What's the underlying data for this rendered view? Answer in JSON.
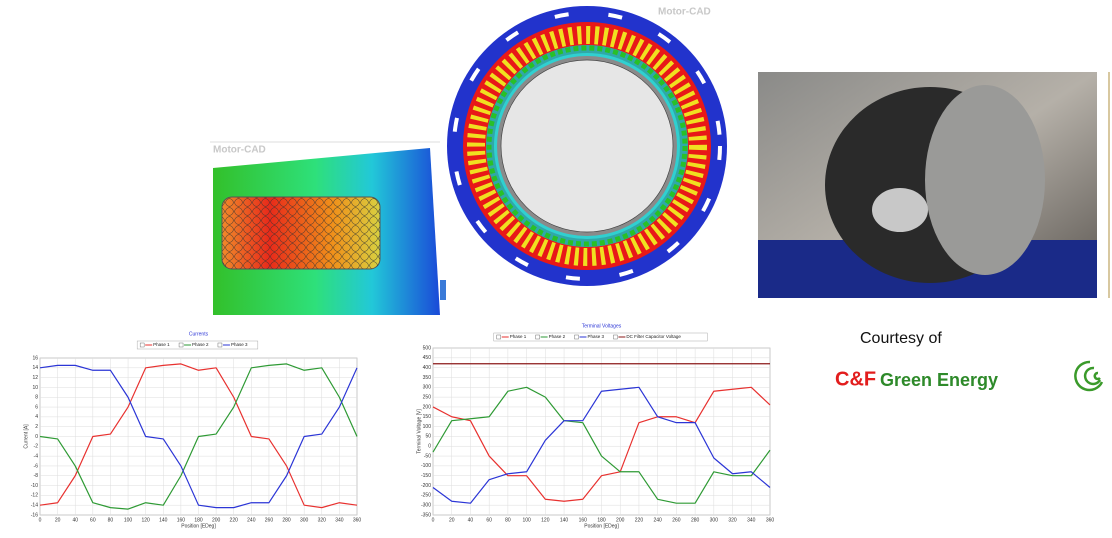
{
  "watermarks": [
    "Motor-CAD",
    "Motor-CAD"
  ],
  "courtesy": "Courtesy of",
  "logo": {
    "cf": "C&F",
    "name": "Green Energy"
  },
  "chart_data": [
    {
      "type": "line",
      "title": "Currents",
      "xlabel": "Position [EDeg]",
      "ylabel": "Current [A]",
      "x": [
        0,
        20,
        40,
        60,
        80,
        100,
        120,
        140,
        160,
        180,
        200,
        220,
        240,
        260,
        280,
        300,
        320,
        340,
        360
      ],
      "xlim": [
        0,
        360
      ],
      "xticks": [
        0,
        20,
        40,
        60,
        80,
        100,
        120,
        140,
        160,
        180,
        200,
        220,
        240,
        260,
        280,
        300,
        320,
        340,
        360
      ],
      "ylim": [
        -16,
        16
      ],
      "yticks": [
        -16,
        -14,
        -12,
        -10,
        -8,
        -6,
        -4,
        -2,
        0,
        2,
        4,
        6,
        8,
        10,
        12,
        14,
        16
      ],
      "grid": true,
      "series": [
        {
          "name": "Phase 1",
          "color": "#e8312f",
          "values": [
            -14,
            -13.5,
            -8,
            0,
            0.5,
            6,
            14,
            14.5,
            14.8,
            13.5,
            14,
            8,
            0,
            -0.5,
            -6,
            -14,
            -14.5,
            -13.5,
            -14
          ]
        },
        {
          "name": "Phase 2",
          "color": "#2e9a34",
          "values": [
            0,
            -0.5,
            -6,
            -13.5,
            -14.5,
            -14.8,
            -13.5,
            -14,
            -8,
            0,
            0.5,
            6,
            14,
            14.5,
            14.8,
            13.5,
            14,
            8,
            0
          ]
        },
        {
          "name": "Phase 3",
          "color": "#2b35d6",
          "values": [
            14,
            14.5,
            14.5,
            13.5,
            13.5,
            8,
            0,
            -0.5,
            -6,
            -14,
            -14.5,
            -14.5,
            -13.5,
            -13.5,
            -8,
            0,
            0.5,
            6,
            14
          ]
        }
      ]
    },
    {
      "type": "line",
      "title": "Terminal Voltages",
      "xlabel": "Position [EDeg]",
      "ylabel": "Terminal Voltage [V]",
      "x": [
        0,
        20,
        40,
        60,
        80,
        100,
        120,
        140,
        160,
        180,
        200,
        220,
        240,
        260,
        280,
        300,
        320,
        340,
        360
      ],
      "xlim": [
        0,
        360
      ],
      "xticks": [
        0,
        20,
        40,
        60,
        80,
        100,
        120,
        140,
        160,
        180,
        200,
        220,
        240,
        260,
        280,
        300,
        320,
        340,
        360
      ],
      "ylim": [
        -350,
        500
      ],
      "yticks": [
        -350,
        -300,
        -250,
        -200,
        -150,
        -100,
        -50,
        0,
        50,
        100,
        150,
        200,
        250,
        300,
        350,
        400,
        450,
        500
      ],
      "grid": true,
      "series": [
        {
          "name": "Phase 1",
          "color": "#e8312f",
          "values": [
            200,
            150,
            130,
            -50,
            -150,
            -150,
            -270,
            -280,
            -270,
            -150,
            -130,
            120,
            150,
            150,
            120,
            280,
            290,
            300,
            210
          ]
        },
        {
          "name": "Phase 2",
          "color": "#2e9a34",
          "values": [
            -30,
            130,
            140,
            150,
            280,
            300,
            250,
            130,
            120,
            -50,
            -130,
            -130,
            -270,
            -290,
            -290,
            -130,
            -150,
            -150,
            -20
          ]
        },
        {
          "name": "Phase 3",
          "color": "#2b35d6",
          "values": [
            -210,
            -280,
            -290,
            -170,
            -140,
            -130,
            30,
            130,
            130,
            280,
            290,
            300,
            150,
            120,
            120,
            -60,
            -140,
            -130,
            -210
          ]
        },
        {
          "name": "DC Filter Capacitor Voltage",
          "color": "#8b1a1a",
          "values": [
            420,
            420,
            420,
            420,
            420,
            420,
            420,
            420,
            420,
            420,
            420,
            420,
            420,
            420,
            420,
            420,
            420,
            420,
            420
          ]
        }
      ]
    }
  ]
}
